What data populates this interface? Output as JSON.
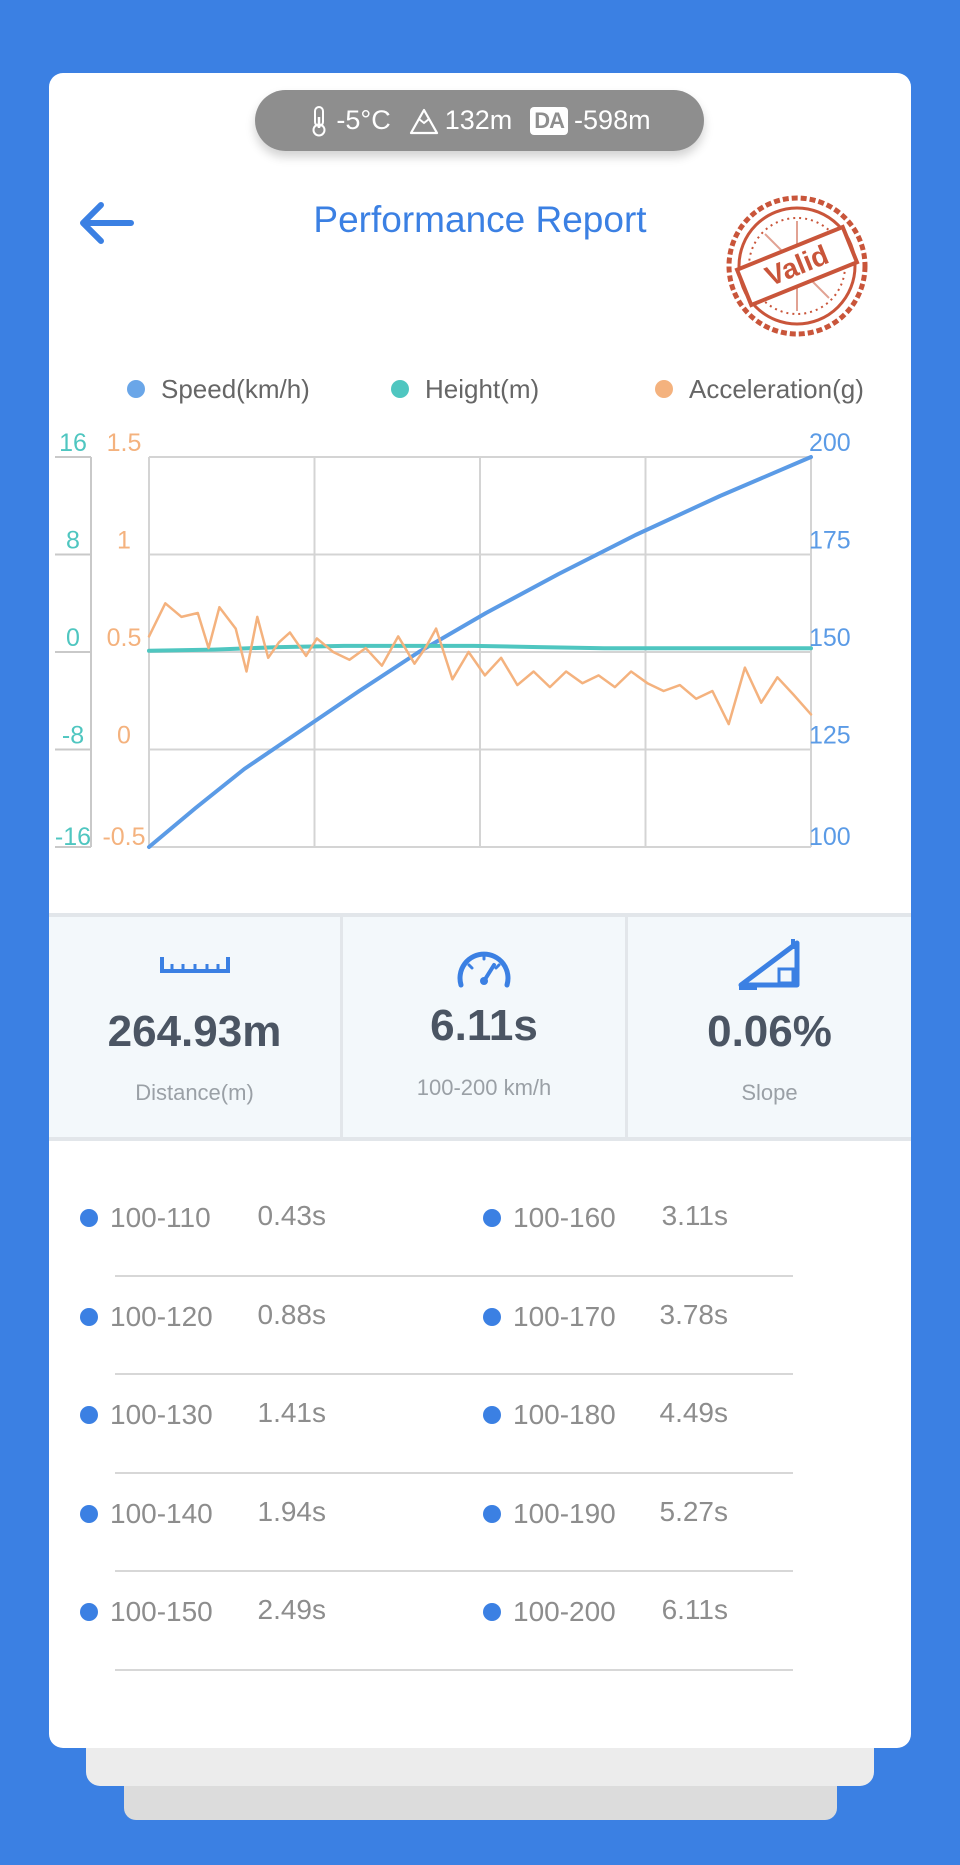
{
  "environment": {
    "temperature": "-5°C",
    "altitude": "132m",
    "da_label": "DA",
    "density_altitude": "-598m"
  },
  "header": {
    "title": "Performance Report",
    "stamp_text": "Valid"
  },
  "legend": [
    {
      "label": "Speed(km/h)",
      "color": "#5b9be6"
    },
    {
      "label": "Height(m)",
      "color": "#4fc6c0"
    },
    {
      "label": "Acceleration(g)",
      "color": "#f4b27e"
    }
  ],
  "colors": {
    "accent": "#3b80e3",
    "speed": "#5b9be6",
    "height": "#4fc6c0",
    "acceleration": "#f4b27e",
    "stamp": "#c9553a"
  },
  "chart_data": {
    "type": "line",
    "grid": true,
    "axes": {
      "height_axis": {
        "range": [
          -16,
          16
        ],
        "ticks": [
          "16",
          "8",
          "0",
          "-8",
          "-16"
        ],
        "unit": "m"
      },
      "acceleration_axis": {
        "range": [
          -0.5,
          1.5
        ],
        "ticks": [
          "1.5",
          "1",
          "0.5",
          "0",
          "-0.5"
        ],
        "unit": "g"
      },
      "speed_axis": {
        "range": [
          100,
          200
        ],
        "ticks": [
          "200",
          "175",
          "150",
          "125",
          "100"
        ],
        "unit": "km/h"
      },
      "time_range_s": [
        0,
        6.11
      ]
    },
    "series": [
      {
        "name": "Speed(km/h)",
        "axis": "speed_axis",
        "t": [
          0,
          0.43,
          0.88,
          1.41,
          1.94,
          2.49,
          3.11,
          3.78,
          4.49,
          5.27,
          6.11
        ],
        "values": [
          100,
          110,
          120,
          130,
          140,
          150,
          160,
          170,
          180,
          190,
          200
        ]
      },
      {
        "name": "Height(m)",
        "axis": "height_axis",
        "t": [
          0,
          0.6,
          1.2,
          1.8,
          2.4,
          3.0,
          3.6,
          4.2,
          4.8,
          5.4,
          6.11
        ],
        "values": [
          0.1,
          0.2,
          0.4,
          0.5,
          0.5,
          0.5,
          0.4,
          0.3,
          0.3,
          0.3,
          0.3
        ]
      },
      {
        "name": "Acceleration(g)",
        "axis": "acceleration_axis",
        "t": [
          0,
          0.15,
          0.3,
          0.45,
          0.55,
          0.65,
          0.8,
          0.9,
          1.0,
          1.1,
          1.2,
          1.3,
          1.45,
          1.55,
          1.7,
          1.85,
          2.0,
          2.15,
          2.3,
          2.45,
          2.55,
          2.65,
          2.8,
          2.95,
          3.1,
          3.25,
          3.4,
          3.55,
          3.7,
          3.85,
          4.0,
          4.15,
          4.3,
          4.45,
          4.6,
          4.75,
          4.9,
          5.05,
          5.2,
          5.35,
          5.5,
          5.65,
          5.8,
          5.95,
          6.11
        ],
        "values": [
          0.58,
          0.75,
          0.68,
          0.7,
          0.52,
          0.73,
          0.62,
          0.4,
          0.68,
          0.47,
          0.55,
          0.6,
          0.48,
          0.57,
          0.5,
          0.46,
          0.52,
          0.43,
          0.58,
          0.44,
          0.52,
          0.62,
          0.36,
          0.5,
          0.38,
          0.47,
          0.33,
          0.4,
          0.32,
          0.4,
          0.34,
          0.38,
          0.32,
          0.4,
          0.34,
          0.3,
          0.33,
          0.26,
          0.3,
          0.13,
          0.42,
          0.24,
          0.37,
          0.28,
          0.18
        ]
      }
    ]
  },
  "stats": [
    {
      "icon": "ruler-icon",
      "value": "264.93m",
      "label": "Distance(m)"
    },
    {
      "icon": "speedometer-icon",
      "value": "6.11s",
      "label": "100-200 km/h"
    },
    {
      "icon": "slope-icon",
      "value": "0.06%",
      "label": "Slope"
    }
  ],
  "splits": [
    {
      "range": "100-110",
      "time": "0.43s"
    },
    {
      "range": "100-120",
      "time": "0.88s"
    },
    {
      "range": "100-130",
      "time": "1.41s"
    },
    {
      "range": "100-140",
      "time": "1.94s"
    },
    {
      "range": "100-150",
      "time": "2.49s"
    },
    {
      "range": "100-160",
      "time": "3.11s"
    },
    {
      "range": "100-170",
      "time": "3.78s"
    },
    {
      "range": "100-180",
      "time": "4.49s"
    },
    {
      "range": "100-190",
      "time": "5.27s"
    },
    {
      "range": "100-200",
      "time": "6.11s"
    }
  ]
}
